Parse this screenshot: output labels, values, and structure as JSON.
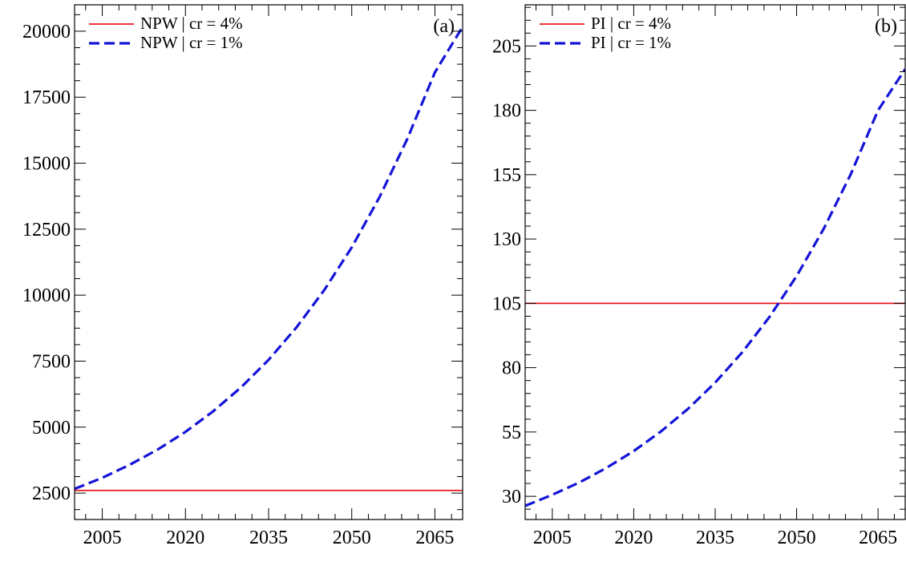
{
  "chart_data": [
    {
      "type": "line",
      "panel_label": "(a)",
      "xlim": [
        2000,
        2070
      ],
      "ylim": [
        1500,
        21000
      ],
      "xticks": [
        2005,
        2020,
        2035,
        2050,
        2065
      ],
      "xtick_labels": [
        "2005",
        "2020",
        "2035",
        "2050",
        "2065"
      ],
      "yticks": [
        2500,
        5000,
        7500,
        10000,
        12500,
        15000,
        17500,
        20000
      ],
      "ytick_labels": [
        "2500",
        "5000",
        "7500",
        "10000",
        "12500",
        "15000",
        "17500",
        "20000"
      ],
      "title": "",
      "xlabel": "",
      "ylabel": "",
      "legend_position": "top-left",
      "grid": false,
      "series": [
        {
          "name": "NPW | cr = 4%",
          "color": "#e8141b",
          "style": "solid",
          "x": [
            2000,
            2070
          ],
          "y": [
            2600,
            2600
          ]
        },
        {
          "name": "NPW | cr = 1%",
          "color": "#1414d8",
          "style": "dashed",
          "x": [
            2000,
            2005,
            2010,
            2015,
            2020,
            2025,
            2030,
            2035,
            2040,
            2045,
            2050,
            2055,
            2060,
            2065,
            2070
          ],
          "y": [
            2660,
            3080,
            3580,
            4150,
            4820,
            5600,
            6500,
            7550,
            8770,
            10180,
            11810,
            13710,
            15910,
            18440,
            20170
          ]
        }
      ]
    },
    {
      "type": "line",
      "panel_label": "(b)",
      "xlim": [
        2000,
        2070
      ],
      "ylim": [
        21,
        221
      ],
      "xticks": [
        2005,
        2020,
        2035,
        2050,
        2065
      ],
      "xtick_labels": [
        "2005",
        "2020",
        "2035",
        "2050",
        "2065"
      ],
      "yticks": [
        30,
        55,
        80,
        105,
        130,
        155,
        180,
        205
      ],
      "ytick_labels": [
        "30",
        "55",
        "80",
        "105",
        "130",
        "155",
        "180",
        "205"
      ],
      "title": "",
      "xlabel": "",
      "ylabel": "",
      "legend_position": "top-left",
      "grid": false,
      "series": [
        {
          "name": "PI | cr = 4%",
          "color": "#e8141b",
          "style": "solid",
          "x": [
            2000,
            2070
          ],
          "y": [
            105,
            105
          ]
        },
        {
          "name": "PI | cr = 1%",
          "color": "#1414d8",
          "style": "dashed",
          "x": [
            2000,
            2005,
            2010,
            2015,
            2020,
            2025,
            2030,
            2035,
            2040,
            2045,
            2050,
            2055,
            2060,
            2065,
            2070
          ],
          "y": [
            26.3,
            30.6,
            35.4,
            41.1,
            47.6,
            55.2,
            64.0,
            74.2,
            86.0,
            99.7,
            115.6,
            134.0,
            155.3,
            180.0,
            196.0
          ]
        }
      ]
    }
  ]
}
